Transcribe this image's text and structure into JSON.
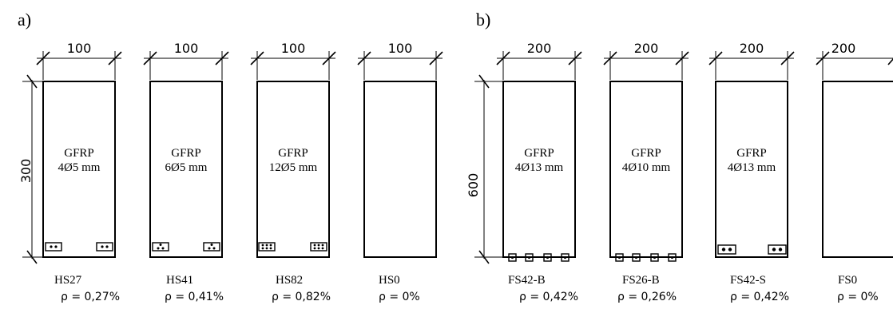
{
  "panels": [
    {
      "label": "a)",
      "width_text": "100",
      "height_text": "300",
      "beams": [
        {
          "material": "GFRP",
          "reinforcement": "4Ø5 mm",
          "name": "HS27",
          "ratio": "ρ = 0,27%",
          "bar_detail": "two-bar boxes"
        },
        {
          "material": "GFRP",
          "reinforcement": "6Ø5 mm",
          "name": "HS41",
          "ratio": "ρ = 0,41%",
          "bar_detail": "three-bar boxes"
        },
        {
          "material": "GFRP",
          "reinforcement": "12Ø5 mm",
          "name": "HS82",
          "ratio": "ρ = 0,82%",
          "bar_detail": "six-bar boxes"
        },
        {
          "material": "",
          "reinforcement": "",
          "name": "HS0",
          "ratio": "ρ = 0%",
          "bar_detail": "none"
        }
      ]
    },
    {
      "label": "b)",
      "width_text": "200",
      "height_text": "600",
      "beams": [
        {
          "material": "GFRP",
          "reinforcement": "4Ø13 mm",
          "name": "FS42-B",
          "ratio": "ρ = 0,42%",
          "bar_detail": "four bars at bottom"
        },
        {
          "material": "GFRP",
          "reinforcement": "4Ø10 mm",
          "name": "FS26-B",
          "ratio": "ρ = 0,26%",
          "bar_detail": "four bars at bottom"
        },
        {
          "material": "GFRP",
          "reinforcement": "4Ø13 mm",
          "name": "FS42-S",
          "ratio": "ρ = 0,42%",
          "bar_detail": "two-bar boxes at sides"
        },
        {
          "material": "",
          "reinforcement": "",
          "name": "FS0",
          "ratio": "ρ = 0%",
          "bar_detail": "none"
        }
      ]
    }
  ]
}
